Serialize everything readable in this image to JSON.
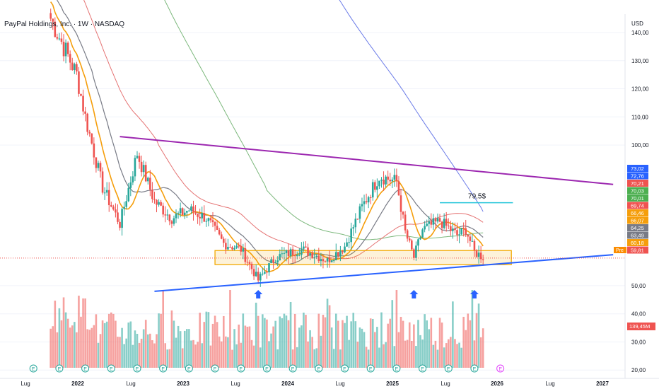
{
  "header": {
    "title": "PayPal Holdings, Inc. · 1W · NASDAQ",
    "currency": "USD"
  },
  "colors": {
    "up": "#26a69a",
    "down": "#ef5350",
    "wma": "#e57373",
    "ema_fast": "#f59e0b",
    "ema_mid": "#787b86",
    "ma100": "#7cb87c",
    "ma200": "#6c7ce8",
    "trend_upper": "#9c27b0",
    "trend_lower": "#2962ff",
    "support_zone": "#f2a900",
    "target_line": "#26c6da",
    "arrow": "#2962ff"
  },
  "chart_data": {
    "type": "candlestick",
    "symbol": "PayPal Holdings, Inc.",
    "timeframe": "1W",
    "exchange": "NASDAQ",
    "currency": "USD",
    "y_axis": {
      "ylim": [
        18,
        145
      ],
      "ticks": [
        "140,00",
        "130,00",
        "120,00",
        "110,00",
        "100,00",
        "50,00",
        "40,00",
        "30,00",
        "20,00"
      ],
      "tick_values": [
        140,
        130,
        120,
        110,
        100,
        50,
        40,
        30,
        20
      ]
    },
    "x_axis": {
      "ticks": [
        "Lug",
        "2022",
        "Lug",
        "2023",
        "Lug",
        "2024",
        "Lug",
        "2025",
        "Lug",
        "2026",
        "Lug",
        "2027"
      ]
    },
    "price_badges": [
      {
        "label": "73,02",
        "value": 73.02,
        "color": "#2962ff"
      },
      {
        "label": "72,76",
        "value": 72.76,
        "color": "#2962ff"
      },
      {
        "label": "70,21",
        "value": 70.21,
        "color": "#ef5350"
      },
      {
        "label": "70,03",
        "value": 70.03,
        "color": "#4caf50"
      },
      {
        "label": "70,01",
        "value": 70.01,
        "color": "#4caf50"
      },
      {
        "label": "69,74",
        "value": 69.74,
        "color": "#ef5350"
      },
      {
        "label": "66,46",
        "value": 66.46,
        "color": "#f59e0b"
      },
      {
        "label": "66,07",
        "value": 66.07,
        "color": "#f59e0b"
      },
      {
        "label": "64,25",
        "value": 64.25,
        "color": "#787b86"
      },
      {
        "label": "63,49",
        "value": 63.49,
        "color": "#787b86"
      },
      {
        "label": "60,18",
        "value": 60.18,
        "color": "#f59e0b"
      },
      {
        "label": "59,81",
        "value": 59.81,
        "color": "#ef5350"
      }
    ],
    "pre_label": "Pre",
    "volume_badge": "139,45M",
    "target_label": "79,5$",
    "target_value": 79.5,
    "support_zone": {
      "low": 57.5,
      "high": 62.5
    },
    "trendlines": [
      {
        "name": "upper",
        "from": {
          "date": "2022-06",
          "value": 103
        },
        "to": {
          "date": "2027-01",
          "value": 86
        }
      },
      {
        "name": "lower",
        "from": {
          "date": "2022-10",
          "value": 48
        },
        "to": {
          "date": "2027-01",
          "value": 61
        }
      }
    ],
    "arrows": [
      "2023-10",
      "2025-04",
      "2025-11"
    ],
    "earnings_markers": [
      "2021-08",
      "2021-11",
      "2022-02",
      "2022-05",
      "2022-08",
      "2022-11",
      "2023-02",
      "2023-05",
      "2023-08",
      "2023-11",
      "2024-02",
      "2024-05",
      "2024-08",
      "2024-11",
      "2025-02",
      "2025-05",
      "2025-08",
      "2025-11",
      "2026-02"
    ],
    "price_anchors": [
      {
        "date": "2021-10",
        "value": 145
      },
      {
        "date": "2022-01",
        "value": 125
      },
      {
        "date": "2022-02",
        "value": 110
      },
      {
        "date": "2022-04",
        "value": 85
      },
      {
        "date": "2022-06",
        "value": 72
      },
      {
        "date": "2022-08",
        "value": 97
      },
      {
        "date": "2022-10",
        "value": 80
      },
      {
        "date": "2022-12",
        "value": 74
      },
      {
        "date": "2023-02",
        "value": 77
      },
      {
        "date": "2023-04",
        "value": 74
      },
      {
        "date": "2023-06",
        "value": 65
      },
      {
        "date": "2023-08",
        "value": 63
      },
      {
        "date": "2023-10",
        "value": 52
      },
      {
        "date": "2023-12",
        "value": 60
      },
      {
        "date": "2024-03",
        "value": 63
      },
      {
        "date": "2024-06",
        "value": 59
      },
      {
        "date": "2024-08",
        "value": 64
      },
      {
        "date": "2024-10",
        "value": 78
      },
      {
        "date": "2024-12",
        "value": 89
      },
      {
        "date": "2025-02",
        "value": 87
      },
      {
        "date": "2025-03",
        "value": 69
      },
      {
        "date": "2025-04",
        "value": 60
      },
      {
        "date": "2025-05",
        "value": 70
      },
      {
        "date": "2025-07",
        "value": 73
      },
      {
        "date": "2025-09",
        "value": 68
      },
      {
        "date": "2025-10",
        "value": 70
      },
      {
        "date": "2025-11",
        "value": 62
      },
      {
        "date": "2025-12",
        "value": 60.18
      }
    ]
  }
}
